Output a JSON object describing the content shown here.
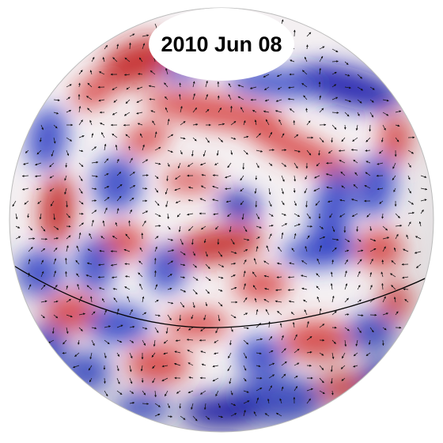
{
  "figure": {
    "date_label": "2010 Jun 08"
  },
  "colors": {
    "positive": "#d63a3a",
    "positive_deep": "#c01818",
    "negative": "#2c3cc4",
    "negative_deep": "#1010a8",
    "neutral": "#f4f0f2",
    "vectors": "#111111",
    "equator": "#000000"
  }
}
